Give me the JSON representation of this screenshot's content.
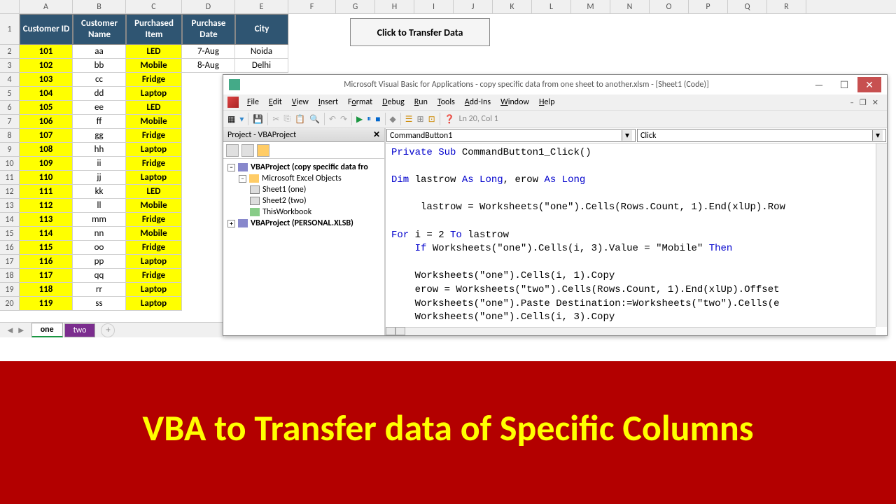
{
  "columns": [
    "A",
    "B",
    "C",
    "D",
    "E",
    "F",
    "G",
    "H",
    "I",
    "J",
    "K",
    "L",
    "M",
    "N",
    "O",
    "P",
    "Q",
    "R"
  ],
  "headers": [
    "Customer ID",
    "Customer Name",
    "Purchased Item",
    "Purchase Date",
    "City"
  ],
  "rows": [
    {
      "n": 2,
      "id": "101",
      "name": "aa",
      "item": "LED",
      "date": "7-Aug",
      "city": "Noida"
    },
    {
      "n": 3,
      "id": "102",
      "name": "bb",
      "item": "Mobile",
      "date": "8-Aug",
      "city": "Delhi"
    },
    {
      "n": 4,
      "id": "103",
      "name": "cc",
      "item": "Fridge",
      "date": "",
      "city": ""
    },
    {
      "n": 5,
      "id": "104",
      "name": "dd",
      "item": "Laptop",
      "date": "",
      "city": ""
    },
    {
      "n": 6,
      "id": "105",
      "name": "ee",
      "item": "LED",
      "date": "",
      "city": ""
    },
    {
      "n": 7,
      "id": "106",
      "name": "ff",
      "item": "Mobile",
      "date": "",
      "city": ""
    },
    {
      "n": 8,
      "id": "107",
      "name": "gg",
      "item": "Fridge",
      "date": "",
      "city": ""
    },
    {
      "n": 9,
      "id": "108",
      "name": "hh",
      "item": "Laptop",
      "date": "",
      "city": ""
    },
    {
      "n": 10,
      "id": "109",
      "name": "ii",
      "item": "Fridge",
      "date": "",
      "city": ""
    },
    {
      "n": 11,
      "id": "110",
      "name": "jj",
      "item": "Laptop",
      "date": "",
      "city": ""
    },
    {
      "n": 12,
      "id": "111",
      "name": "kk",
      "item": "LED",
      "date": "",
      "city": ""
    },
    {
      "n": 13,
      "id": "112",
      "name": "ll",
      "item": "Mobile",
      "date": "",
      "city": ""
    },
    {
      "n": 14,
      "id": "113",
      "name": "mm",
      "item": "Fridge",
      "date": "",
      "city": ""
    },
    {
      "n": 15,
      "id": "114",
      "name": "nn",
      "item": "Mobile",
      "date": "",
      "city": ""
    },
    {
      "n": 16,
      "id": "115",
      "name": "oo",
      "item": "Fridge",
      "date": "",
      "city": ""
    },
    {
      "n": 17,
      "id": "116",
      "name": "pp",
      "item": "Laptop",
      "date": "",
      "city": ""
    },
    {
      "n": 18,
      "id": "117",
      "name": "qq",
      "item": "Fridge",
      "date": "",
      "city": ""
    },
    {
      "n": 19,
      "id": "118",
      "name": "rr",
      "item": "Laptop",
      "date": "",
      "city": ""
    },
    {
      "n": 20,
      "id": "119",
      "name": "ss",
      "item": "Laptop",
      "date": "",
      "city": ""
    }
  ],
  "transfer_btn": "Click to Transfer Data",
  "tabs": {
    "one": "one",
    "two": "two"
  },
  "vbe": {
    "title": "Microsoft Visual Basic for Applications - copy specific data from one sheet to another.xlsm - [Sheet1 (Code)]",
    "menus": [
      "File",
      "Edit",
      "View",
      "Insert",
      "Format",
      "Debug",
      "Run",
      "Tools",
      "Add-Ins",
      "Window",
      "Help"
    ],
    "status": "Ln 20, Col 1",
    "project_title": "Project - VBAProject",
    "tree": {
      "root": "VBAProject (copy specific data fro",
      "folder": "Microsoft Excel Objects",
      "s1": "Sheet1 (one)",
      "s2": "Sheet2 (two)",
      "wb": "ThisWorkbook",
      "personal": "VBAProject (PERSONAL.XLSB)"
    },
    "dd_left": "CommandButton1",
    "dd_right": "Click",
    "code": {
      "l1a": "Private Sub",
      "l1b": " CommandButton1_Click()",
      "l2a": "Dim",
      "l2b": " lastrow ",
      "l2c": "As Long",
      "l2d": ", erow ",
      "l2e": "As Long",
      "l3": "     lastrow = Worksheets(\"one\").Cells(Rows.Count, 1).End(xlUp).Row",
      "l4a": "For",
      "l4b": " i = 2 ",
      "l4c": "To",
      "l4d": " lastrow",
      "l5a": "    If",
      "l5b": " Worksheets(\"one\").Cells(i, 3).Value = \"Mobile\" ",
      "l5c": "Then",
      "l6": "    Worksheets(\"one\").Cells(i, 1).Copy",
      "l7": "    erow = Worksheets(\"two\").Cells(Rows.Count, 1).End(xlUp).Offset",
      "l8": "    Worksheets(\"one\").Paste Destination:=Worksheets(\"two\").Cells(e",
      "l9": "    Worksheets(\"one\").Cells(i, 3).Copy"
    }
  },
  "banner": "VBA to Transfer data of Specific Columns",
  "colors": {
    "header_bg": "#2f5572",
    "yellow": "#ffff00",
    "banner_bg": "#b30000",
    "banner_text": "#ffff00",
    "keyword": "#0000cc"
  }
}
